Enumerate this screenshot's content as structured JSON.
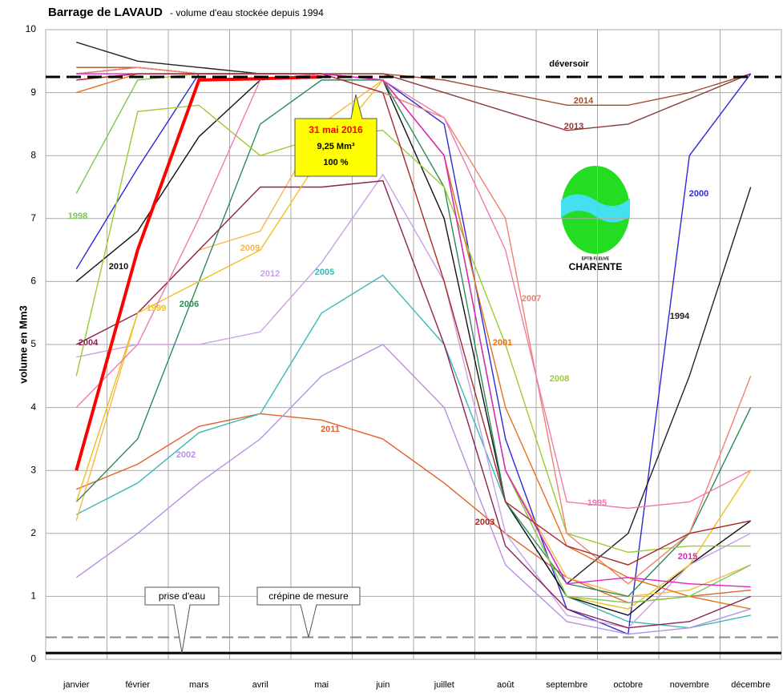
{
  "chart_data": {
    "type": "line",
    "title": "Barrage de LAVAUD",
    "subtitle": "- volume d'eau stockée depuis 1994",
    "y_label": "volume en Mm3",
    "categories": [
      "janvier",
      "février",
      "mars",
      "avril",
      "mai",
      "juin",
      "juillet",
      "août",
      "septembre",
      "octobre",
      "novembre",
      "décembre"
    ],
    "ylim": [
      0,
      10
    ],
    "yticks": [
      0,
      1,
      2,
      3,
      4,
      5,
      6,
      7,
      8,
      9,
      10
    ],
    "grid": true,
    "reference_lines": [
      {
        "label": "déversoir",
        "value": 9.25,
        "color": "#000000"
      },
      {
        "label": "crépine de mesure",
        "value": 0.35,
        "color": "#888888"
      },
      {
        "label": "prise d'eau",
        "value": 0.1,
        "color": "#000000"
      }
    ],
    "annotation": {
      "lines": [
        "31 mai 2016",
        "9,25 Mm³",
        "100 %"
      ]
    },
    "logo": {
      "lines": [
        "EPTB FLEUVE",
        "CHARENTE"
      ]
    },
    "series": [
      {
        "name": "2014",
        "color": "#a0522d",
        "values": [
          9.4,
          9.4,
          9.3,
          9.3,
          9.3,
          9.3,
          9.2,
          9.0,
          8.8,
          8.8,
          9.0,
          9.3
        ]
      },
      {
        "name": "2013",
        "color": "#8b3a3a",
        "values": [
          9.3,
          9.4,
          9.3,
          9.3,
          9.3,
          9.3,
          9.0,
          8.7,
          8.4,
          8.5,
          8.9,
          9.3
        ]
      },
      {
        "name": "2011",
        "color": "#e0622a",
        "values": [
          2.7,
          3.1,
          3.7,
          3.9,
          3.8,
          3.5,
          2.8,
          2.0,
          1.3,
          0.9,
          1.0,
          1.1
        ]
      },
      {
        "name": "2005",
        "color": "#3cb8b8",
        "values": [
          2.3,
          2.8,
          3.6,
          3.9,
          5.5,
          6.1,
          5.0,
          2.5,
          1.0,
          0.6,
          0.5,
          0.7
        ]
      },
      {
        "name": "2000",
        "color": "#2a2ad6",
        "values": [
          6.2,
          7.8,
          9.3,
          9.3,
          9.3,
          9.2,
          8.5,
          3.5,
          0.8,
          0.4,
          8.0,
          9.3
        ]
      },
      {
        "name": "1994",
        "color": "#222222",
        "values": [
          9.8,
          9.5,
          9.4,
          9.3,
          9.3,
          9.2,
          8.0,
          3.0,
          1.2,
          2.0,
          4.5,
          7.5
        ]
      },
      {
        "name": "2010",
        "color": "#111111",
        "values": [
          6.0,
          6.8,
          8.3,
          9.2,
          9.3,
          9.2,
          7.0,
          2.5,
          1.0,
          0.7,
          1.5,
          2.2
        ]
      },
      {
        "name": "2012",
        "color": "#c9a0e8",
        "values": [
          4.8,
          5.0,
          5.0,
          5.2,
          6.3,
          7.7,
          6.0,
          2.0,
          0.7,
          0.5,
          1.5,
          2.0
        ]
      },
      {
        "name": "2009",
        "color": "#f5b84a",
        "values": [
          2.2,
          5.5,
          6.5,
          6.8,
          8.5,
          9.2,
          8.0,
          3.0,
          1.3,
          1.0,
          1.1,
          1.5
        ]
      },
      {
        "name": "2006",
        "color": "#2e8b57",
        "values": [
          2.5,
          3.5,
          6.0,
          8.5,
          9.2,
          9.2,
          7.5,
          2.5,
          1.2,
          1.0,
          2.0,
          4.0
        ]
      },
      {
        "name": "2008",
        "color": "#9acd32",
        "values": [
          4.5,
          8.7,
          8.8,
          8.0,
          8.3,
          8.4,
          7.5,
          5.0,
          2.0,
          1.7,
          1.8,
          1.8
        ]
      },
      {
        "name": "2007",
        "color": "#f08070",
        "values": [
          9.3,
          9.4,
          9.3,
          9.3,
          9.3,
          9.0,
          8.6,
          7.0,
          2.0,
          1.2,
          2.0,
          4.5
        ]
      },
      {
        "name": "2001",
        "color": "#e8701a",
        "values": [
          9.0,
          9.3,
          9.3,
          9.3,
          9.3,
          9.2,
          8.0,
          4.0,
          1.8,
          1.3,
          1.0,
          0.8
        ]
      },
      {
        "name": "2004",
        "color": "#8b2252",
        "values": [
          5.0,
          5.5,
          6.5,
          7.5,
          7.5,
          7.6,
          5.0,
          1.8,
          0.8,
          0.5,
          0.6,
          1.0
        ]
      },
      {
        "name": "2002",
        "color": "#b98fe0",
        "values": [
          1.3,
          2.0,
          2.8,
          3.5,
          4.5,
          5.0,
          4.0,
          1.5,
          0.6,
          0.4,
          0.5,
          0.8
        ]
      },
      {
        "name": "1999",
        "color": "#f0c020",
        "values": [
          2.5,
          5.5,
          6.0,
          6.5,
          8.0,
          9.2,
          8.0,
          3.0,
          1.0,
          0.8,
          1.5,
          3.0
        ]
      },
      {
        "name": "1998",
        "color": "#7cc850",
        "values": [
          7.4,
          9.2,
          9.3,
          9.3,
          9.3,
          9.2,
          8.0,
          3.0,
          1.0,
          0.9,
          1.0,
          1.5
        ]
      },
      {
        "name": "1995",
        "color": "#f07ab0",
        "values": [
          4.0,
          5.0,
          7.0,
          9.2,
          9.3,
          9.2,
          8.6,
          6.5,
          2.5,
          2.4,
          2.5,
          3.0
        ]
      },
      {
        "name": "2015",
        "color": "#e020d0",
        "values": [
          9.3,
          9.3,
          9.3,
          9.3,
          9.3,
          9.2,
          8.0,
          3.0,
          1.2,
          1.3,
          1.2,
          1.15
        ]
      },
      {
        "name": "2003",
        "color": "#a52a2a",
        "values": [
          9.2,
          9.3,
          9.3,
          9.3,
          9.3,
          9.0,
          6.0,
          2.5,
          1.8,
          1.5,
          2.0,
          2.2
        ]
      },
      {
        "name": "2016",
        "color": "#ff0000",
        "values": [
          3.0,
          6.5,
          9.2,
          9.22,
          9.25,
          null,
          null,
          null,
          null,
          null,
          null,
          null
        ]
      }
    ]
  }
}
